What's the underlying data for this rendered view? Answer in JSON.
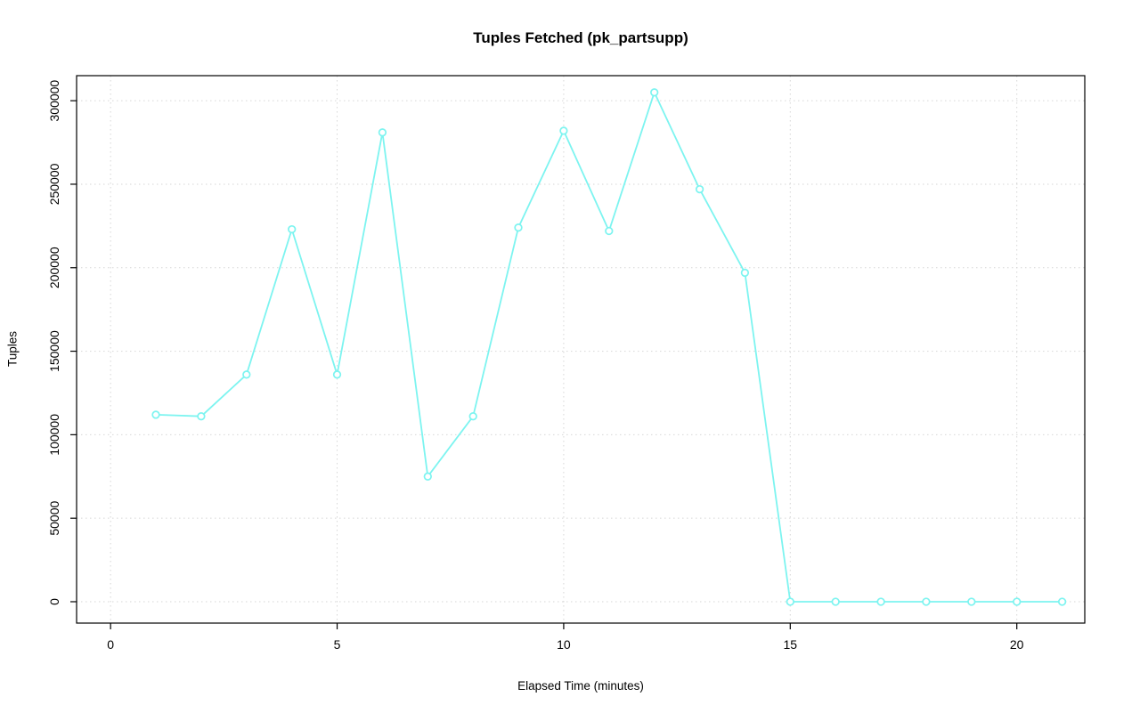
{
  "chart_data": {
    "type": "line",
    "title": "Tuples Fetched (pk_partsupp)",
    "xlabel": "Elapsed Time (minutes)",
    "ylabel": "Tuples",
    "x": [
      1,
      2,
      3,
      4,
      5,
      6,
      7,
      8,
      9,
      10,
      11,
      12,
      13,
      14,
      15,
      16,
      17,
      18,
      19,
      20,
      21
    ],
    "values": [
      112000,
      111000,
      136000,
      223000,
      136000,
      281000,
      75000,
      111000,
      224000,
      282000,
      222000,
      305000,
      247000,
      197000,
      0,
      0,
      0,
      0,
      0,
      0,
      0
    ],
    "xticks": [
      0,
      5,
      10,
      15,
      20
    ],
    "yticks": [
      0,
      50000,
      100000,
      150000,
      200000,
      250000,
      300000
    ],
    "xlim": [
      -0.75,
      21.5
    ],
    "ylim": [
      -12800,
      315000
    ],
    "grid": true,
    "legend": "none",
    "marker": "open-circle",
    "series_color": "#7df4f0",
    "grid_color": "#d6d6d6",
    "axis_color": "#000000",
    "background_color": "#ffffff"
  }
}
